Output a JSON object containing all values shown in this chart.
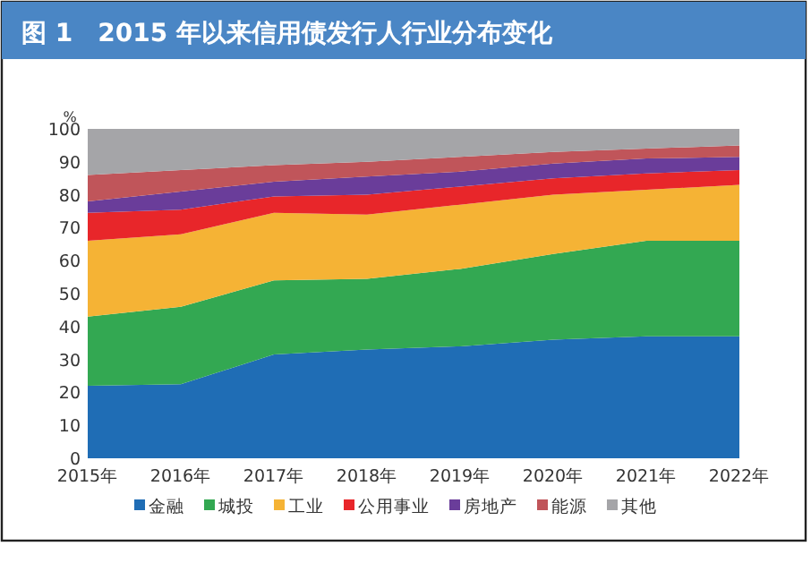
{
  "chart_data": {
    "type": "area",
    "title": "图 1　2015 年以来信用债发行人行业分布变化",
    "ylabel": "%",
    "stacked": true,
    "ylim": [
      0,
      100
    ],
    "yticks": [
      0,
      10,
      20,
      30,
      40,
      50,
      60,
      70,
      80,
      90,
      100
    ],
    "grid": false,
    "legend": "bottom",
    "categories": [
      "2015年",
      "2016年",
      "2017年",
      "2018年",
      "2019年",
      "2020年",
      "2021年",
      "2022年"
    ],
    "series": [
      {
        "name": "金融",
        "color": "#1f6db5",
        "values": [
          22,
          22.5,
          31.5,
          33,
          34,
          36,
          37,
          37
        ]
      },
      {
        "name": "城投",
        "color": "#33a852",
        "values": [
          21,
          23.5,
          22.5,
          21.5,
          23.5,
          26,
          29,
          29
        ]
      },
      {
        "name": "工业",
        "color": "#f5b335",
        "values": [
          23,
          22,
          20.5,
          19.5,
          19.5,
          18,
          15.5,
          17
        ]
      },
      {
        "name": "公用事业",
        "color": "#e8262a",
        "values": [
          8.5,
          7.5,
          5,
          6,
          5.5,
          5,
          5,
          4.5
        ]
      },
      {
        "name": "房地产",
        "color": "#6a3d9a",
        "values": [
          3.5,
          5.5,
          4.5,
          5.5,
          4.5,
          4.5,
          4.5,
          4
        ]
      },
      {
        "name": "能源",
        "color": "#c0555a",
        "values": [
          8,
          6.5,
          5,
          4.5,
          4.5,
          3.5,
          3,
          3.5
        ]
      },
      {
        "name": "其他",
        "color": "#a5a5a8",
        "values": [
          14,
          12.5,
          11,
          10,
          8.5,
          7,
          6,
          5
        ]
      }
    ]
  }
}
